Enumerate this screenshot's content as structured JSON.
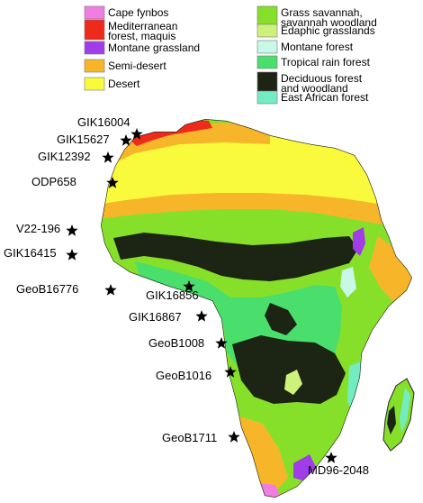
{
  "legend": {
    "left": [
      {
        "lines": [
          "Cape fynbos"
        ],
        "color": "#f07ee0"
      },
      {
        "lines": [
          "Mediterranean",
          "forest, maquis"
        ],
        "color": "#ee2a1a"
      },
      {
        "lines": [
          "Montane grassland"
        ],
        "color": "#a03ce8"
      },
      {
        "lines": [
          "Semi-desert"
        ],
        "color": "#f7b62a"
      },
      {
        "lines": [
          "Desert"
        ],
        "color": "#fafa3c"
      }
    ],
    "right": [
      {
        "lines": [
          "Grass savannah,",
          "savannah woodland"
        ],
        "color": "#86e02a"
      },
      {
        "lines": [
          "Edaphic grasslands"
        ],
        "color": "#cdf27c"
      },
      {
        "lines": [
          "Montane forest"
        ],
        "color": "#c8f8e6"
      },
      {
        "lines": [
          "Tropical rain forest"
        ],
        "color": "#4ade6c"
      },
      {
        "lines": [
          "Deciduous forest",
          "and woodland"
        ],
        "color": "#1c2414"
      },
      {
        "lines": [
          "East African forest"
        ],
        "color": "#74ecc2"
      }
    ]
  },
  "sites": [
    "GIK16004",
    "GIK15627",
    "GIK12392",
    "ODP658",
    "V22-196",
    "GIK16415",
    "GeoB16776",
    "GIK16856",
    "GIK16867",
    "GeoB1008",
    "GeoB1016",
    "GeoB1711",
    "MD96-2048"
  ]
}
